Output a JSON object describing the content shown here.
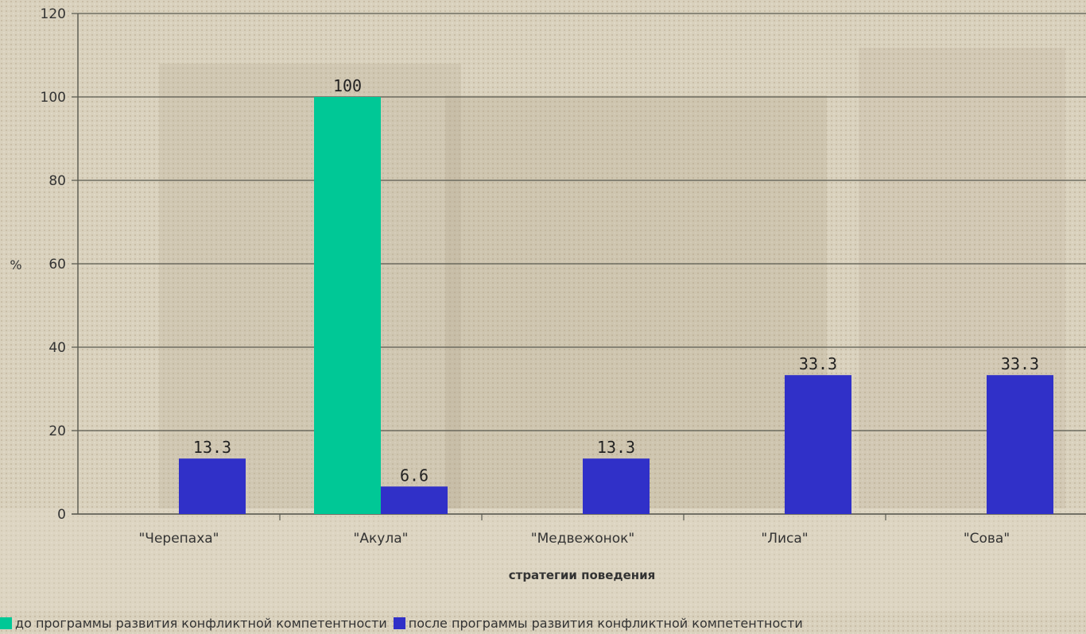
{
  "colors": {
    "before": "#00c896",
    "after": "#3030c8",
    "grid": "#5a5a50",
    "background": "#d8d0bc"
  },
  "chart_data": {
    "type": "bar",
    "title": "",
    "xlabel": "стратегии поведения",
    "ylabel": "%",
    "ylim": [
      0,
      120
    ],
    "yticks": [
      0,
      20,
      40,
      60,
      80,
      100,
      120
    ],
    "grid": true,
    "legend_position": "bottom",
    "categories": [
      "\"Черепаха\"",
      "\"Акула\"",
      "\"Медвежонок\"",
      "\"Лиса\"",
      "\"Сова\""
    ],
    "series": [
      {
        "name": "до программы развития конфликтной компетентности",
        "values": [
          null,
          100,
          null,
          null,
          null
        ],
        "labels": [
          "",
          "100",
          "",
          "",
          ""
        ]
      },
      {
        "name": "после программы развития конфликтной компетентности",
        "values": [
          13.3,
          6.6,
          13.3,
          33.3,
          33.3
        ],
        "labels": [
          "13.3",
          "6.6",
          "13.3",
          "33.3",
          "33.3"
        ]
      }
    ]
  }
}
